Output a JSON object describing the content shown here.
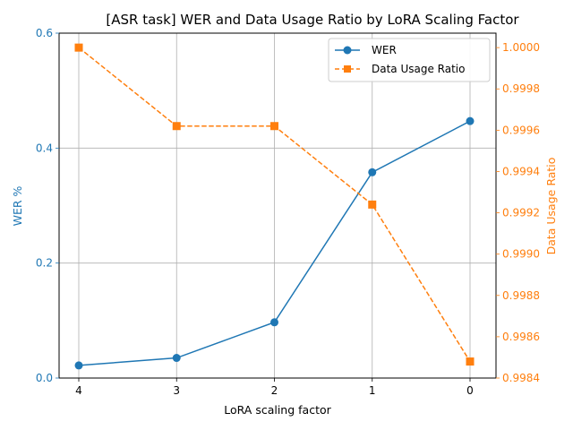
{
  "chart_data": {
    "type": "line",
    "title": "[ASR task] WER and Data Usage Ratio by LoRA Scaling Factor",
    "xlabel": "LoRA scaling factor",
    "ylabel_left": "WER %",
    "ylabel_right": "Data Usage Ratio",
    "x": [
      4,
      3,
      2,
      1,
      0
    ],
    "x_tick_labels": [
      "4",
      "3",
      "2",
      "1",
      "0"
    ],
    "x_reversed": true,
    "ylim_left": [
      0.0,
      0.6
    ],
    "yticks_left": [
      "0.0",
      "0.2",
      "0.4",
      "0.6"
    ],
    "ylim_right": [
      0.9984,
      1.00007
    ],
    "yticks_right": [
      "0.9984",
      "0.9986",
      "0.9988",
      "0.9990",
      "0.9992",
      "0.9994",
      "0.9996",
      "0.9998",
      "1.0000"
    ],
    "grid": true,
    "legend_position": "top-right",
    "series": [
      {
        "name": "WER",
        "axis": "left",
        "values": [
          0.022,
          0.035,
          0.097,
          0.358,
          0.447
        ],
        "color": "#1f77b4",
        "marker": "circle",
        "linestyle": "solid"
      },
      {
        "name": "Data Usage Ratio",
        "axis": "right",
        "values": [
          1.0,
          0.99962,
          0.99962,
          0.99924,
          0.99848
        ],
        "color": "#ff7f0e",
        "marker": "square",
        "linestyle": "dashed"
      }
    ]
  }
}
